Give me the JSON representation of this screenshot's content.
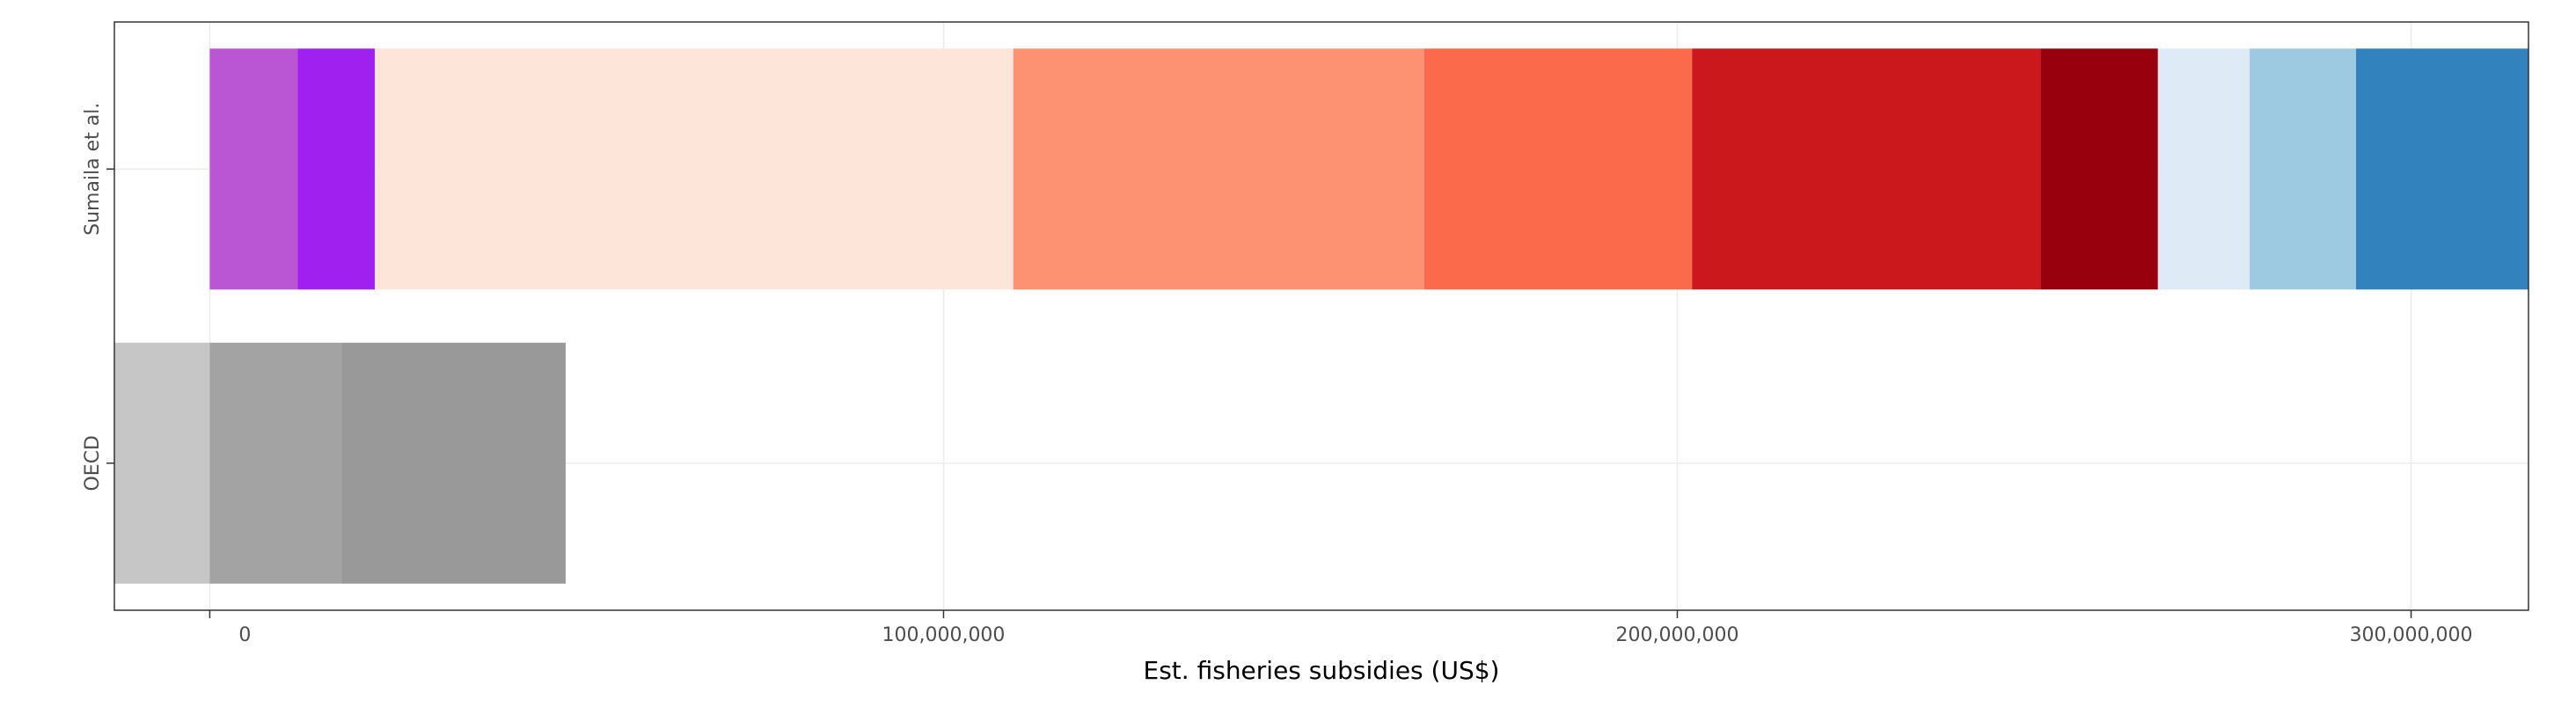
{
  "chart_data": {
    "type": "bar",
    "orientation": "horizontal",
    "stacked": true,
    "xlabel": "Est. fisheries subsidies (US$)",
    "ylabel": "",
    "xlim": [
      -13000000,
      316000000
    ],
    "x_ticks": [
      0,
      100000000,
      200000000,
      300000000
    ],
    "x_tick_labels": [
      "0",
      "100,000,000",
      "200,000,000",
      "300,000,000"
    ],
    "categories": [
      "Sumaila et al.",
      "OECD"
    ],
    "grid": true,
    "legend": "none",
    "bars": [
      {
        "category": "Sumaila et al.",
        "segments": [
          {
            "start": 0,
            "end": 12000000,
            "color": "#BA55D3"
          },
          {
            "start": 12000000,
            "end": 22500000,
            "color": "#A020F0"
          },
          {
            "start": 22500000,
            "end": 109500000,
            "color": "#FEE5D9"
          },
          {
            "start": 109500000,
            "end": 165500000,
            "color": "#FC9272"
          },
          {
            "start": 165500000,
            "end": 202000000,
            "color": "#FB6A4A"
          },
          {
            "start": 202000000,
            "end": 249500000,
            "color": "#CB181D"
          },
          {
            "start": 249500000,
            "end": 265500000,
            "color": "#99000D"
          },
          {
            "start": 265500000,
            "end": 278000000,
            "color": "#DEEBF7"
          },
          {
            "start": 278000000,
            "end": 292500000,
            "color": "#9ECAE1"
          },
          {
            "start": 292500000,
            "end": 316000000,
            "color": "#3182BD"
          }
        ]
      },
      {
        "category": "OECD",
        "segments": [
          {
            "start": -13000000,
            "end": 0,
            "color": "#C6C6C6"
          },
          {
            "start": 0,
            "end": 18000000,
            "color": "#A3A3A3"
          },
          {
            "start": 18000000,
            "end": 48500000,
            "color": "#999999"
          }
        ]
      }
    ]
  }
}
